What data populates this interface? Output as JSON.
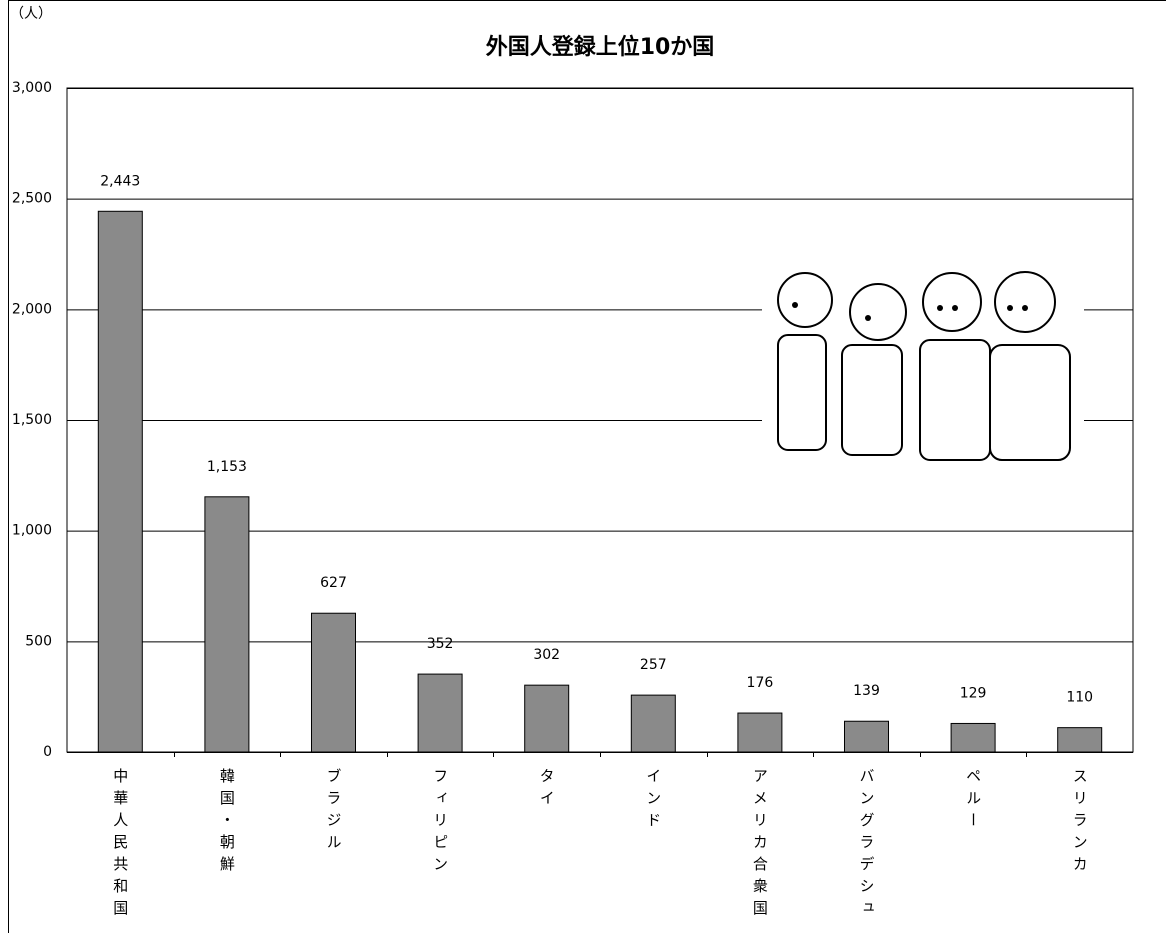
{
  "chart_data": {
    "type": "bar",
    "title": "外国人登録上位10か国",
    "y_label": "（人）",
    "categories": [
      "中華人民共和国",
      "韓国・朝鮮",
      "ブラジル",
      "フィリピン",
      "タイ",
      "インド",
      "アメリカ合衆国",
      "バングラデシュ",
      "ペルー",
      "スリランカ"
    ],
    "values": [
      2443,
      1153,
      627,
      352,
      302,
      257,
      176,
      139,
      129,
      110
    ],
    "value_labels": [
      "2,443",
      "1,153",
      "627",
      "352",
      "302",
      "257",
      "176",
      "139",
      "129",
      "110"
    ],
    "color": "#8a8a8a",
    "ylim": [
      0,
      3000
    ],
    "yticks": [
      0,
      500,
      {
        "value": 1000,
        "label": "1,000"
      },
      {
        "value": 1500,
        "label": "1,500"
      },
      {
        "value": 2000,
        "label": "2,000"
      },
      {
        "value": 2500,
        "label": "2,500"
      },
      {
        "value": 3000,
        "label": "3,000"
      }
    ],
    "grid": true
  }
}
